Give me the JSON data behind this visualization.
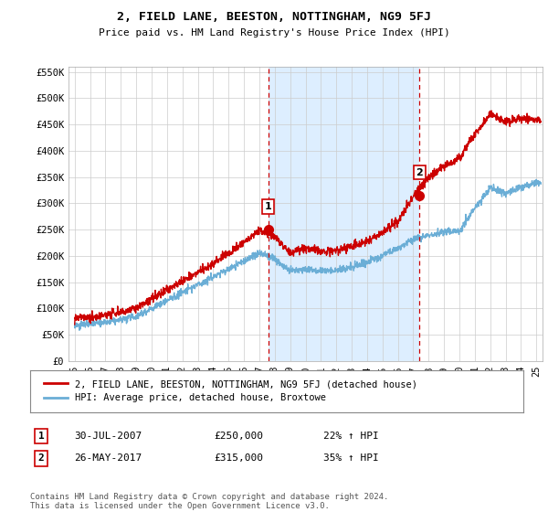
{
  "title": "2, FIELD LANE, BEESTON, NOTTINGHAM, NG9 5FJ",
  "subtitle": "Price paid vs. HM Land Registry's House Price Index (HPI)",
  "ylabel_ticks": [
    "£0",
    "£50K",
    "£100K",
    "£150K",
    "£200K",
    "£250K",
    "£300K",
    "£350K",
    "£400K",
    "£450K",
    "£500K",
    "£550K"
  ],
  "ylim": [
    0,
    550000
  ],
  "ytick_vals": [
    0,
    50000,
    100000,
    150000,
    200000,
    250000,
    300000,
    350000,
    400000,
    450000,
    500000,
    550000
  ],
  "xlim_start": 1994.6,
  "xlim_end": 2025.4,
  "hpi_color": "#6baed6",
  "price_color": "#cc0000",
  "vline_color": "#cc0000",
  "shade_color": "#ddeeff",
  "marker1_x": 2007.58,
  "marker1_y": 250000,
  "marker2_x": 2017.4,
  "marker2_y": 315000,
  "legend_label1": "2, FIELD LANE, BEESTON, NOTTINGHAM, NG9 5FJ (detached house)",
  "legend_label2": "HPI: Average price, detached house, Broxtowe",
  "annotation1_label": "1",
  "annotation1_date": "30-JUL-2007",
  "annotation1_price": "£250,000",
  "annotation1_hpi": "22% ↑ HPI",
  "annotation2_label": "2",
  "annotation2_date": "26-MAY-2017",
  "annotation2_price": "£315,000",
  "annotation2_hpi": "35% ↑ HPI",
  "footer": "Contains HM Land Registry data © Crown copyright and database right 2024.\nThis data is licensed under the Open Government Licence v3.0.",
  "bg_color": "#ffffff",
  "grid_color": "#cccccc",
  "title_fontsize": 10,
  "subtitle_fontsize": 9,
  "hpi_key_years": [
    1995,
    1996,
    1997,
    1998,
    1999,
    2000,
    2001,
    2002,
    2003,
    2004,
    2005,
    2006,
    2007,
    2008,
    2009,
    2010,
    2011,
    2012,
    2013,
    2014,
    2015,
    2016,
    2017,
    2018,
    2019,
    2020,
    2021,
    2022,
    2023,
    2024,
    2025
  ],
  "hpi_key_vals": [
    68000,
    70000,
    73000,
    78000,
    85000,
    100000,
    115000,
    130000,
    145000,
    160000,
    175000,
    190000,
    205000,
    195000,
    170000,
    175000,
    172000,
    172000,
    178000,
    188000,
    200000,
    215000,
    230000,
    240000,
    245000,
    248000,
    290000,
    330000,
    320000,
    330000,
    340000
  ],
  "price_key_years": [
    1995,
    1996,
    1997,
    1998,
    1999,
    2000,
    2001,
    2002,
    2003,
    2004,
    2005,
    2006,
    2007,
    2008,
    2009,
    2010,
    2011,
    2012,
    2013,
    2014,
    2015,
    2016,
    2017,
    2018,
    2019,
    2020,
    2021,
    2022,
    2023,
    2024,
    2025
  ],
  "price_key_vals": [
    82000,
    84000,
    88000,
    93000,
    100000,
    118000,
    135000,
    152000,
    168000,
    185000,
    205000,
    225000,
    250000,
    238000,
    205000,
    215000,
    208000,
    210000,
    218000,
    228000,
    245000,
    265000,
    315000,
    350000,
    370000,
    385000,
    430000,
    470000,
    455000,
    462000,
    458000
  ]
}
